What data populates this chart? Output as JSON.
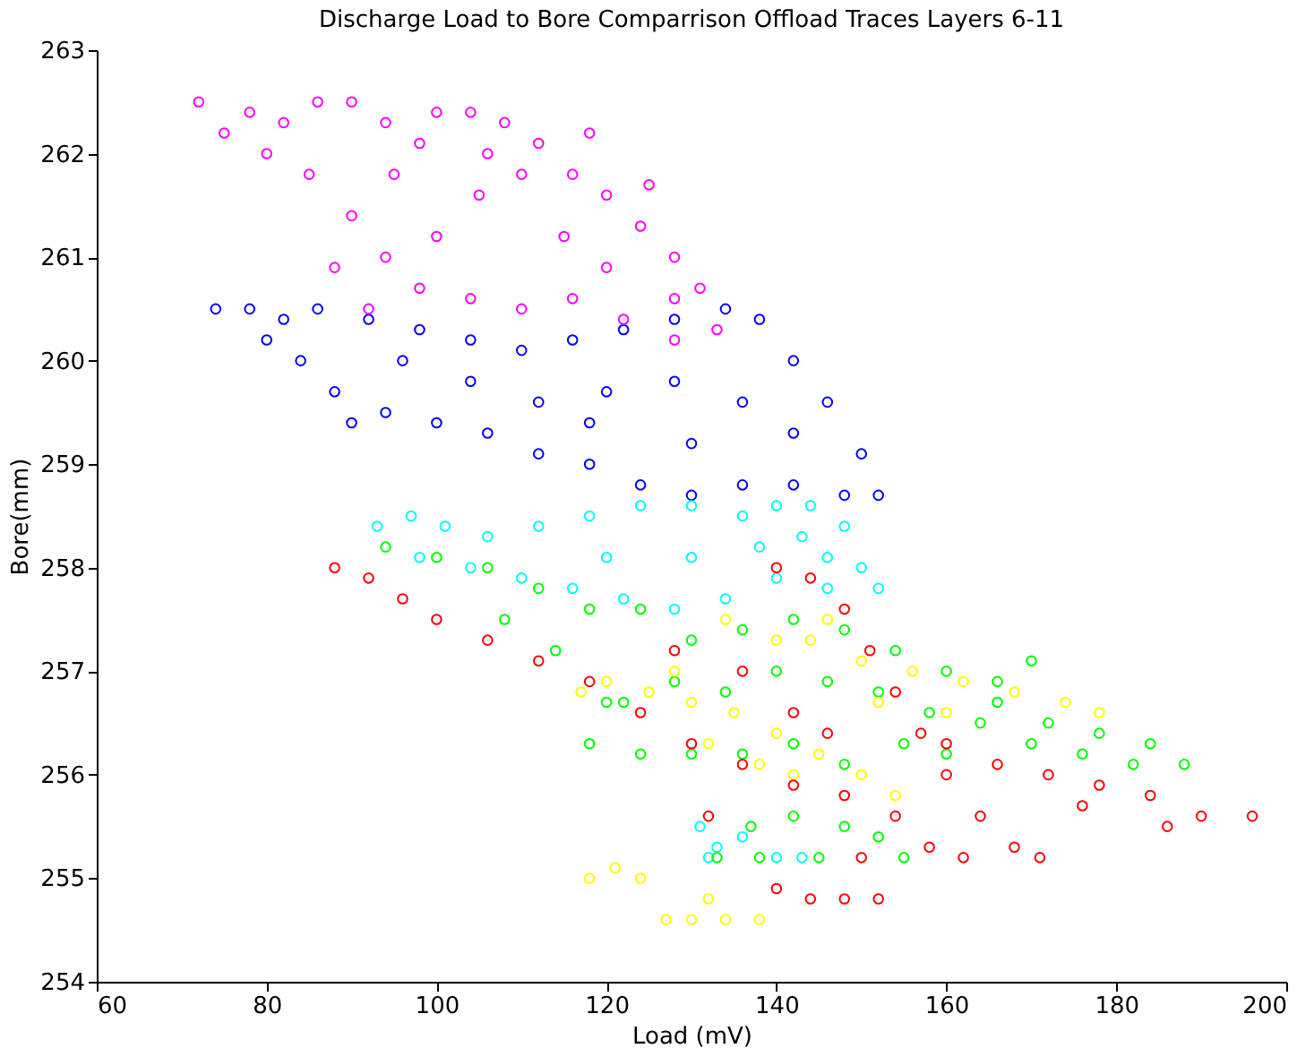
{
  "chart_data": {
    "type": "scatter",
    "title": "Discharge Load to Bore Comparrison Offload Traces Layers 6-11",
    "xlabel": "Load (mV)",
    "ylabel": "Bore(mm)",
    "xlim": [
      60,
      200
    ],
    "xticks": [
      60,
      80,
      100,
      120,
      140,
      160,
      180,
      200
    ],
    "ylim": [
      254,
      263
    ],
    "yticks": [
      254,
      255,
      256,
      257,
      258,
      259,
      260,
      261,
      262,
      263
    ],
    "grid": false,
    "legend": false,
    "marker": "circle",
    "series": [
      {
        "color": "#0000ff",
        "x": [
          74,
          78,
          82,
          86,
          92,
          98,
          104,
          110,
          116,
          122,
          128,
          134,
          138,
          142,
          146,
          150,
          152,
          148,
          142,
          136,
          130,
          124,
          118,
          112,
          106,
          100,
          94,
          90,
          88,
          84,
          80,
          96,
          104,
          112,
          120,
          128,
          136,
          142,
          130,
          118
        ],
        "values": [
          260.5,
          260.5,
          260.4,
          260.5,
          260.4,
          260.3,
          260.2,
          260.1,
          260.2,
          260.3,
          260.4,
          260.5,
          260.4,
          260.0,
          259.6,
          259.1,
          258.7,
          258.7,
          258.8,
          258.8,
          258.7,
          258.8,
          259.0,
          259.1,
          259.3,
          259.4,
          259.5,
          259.4,
          259.7,
          260.0,
          260.2,
          260.0,
          259.8,
          259.6,
          259.7,
          259.8,
          259.6,
          259.3,
          259.2,
          259.4
        ]
      },
      {
        "color": "#ff00ff",
        "x": [
          72,
          75,
          78,
          82,
          86,
          90,
          94,
          98,
          100,
          104,
          108,
          112,
          116,
          120,
          124,
          128,
          131,
          133,
          128,
          122,
          116,
          110,
          104,
          98,
          94,
          90,
          85,
          80,
          95,
          105,
          115,
          110,
          100,
          120,
          125,
          128,
          88,
          92,
          106,
          118
        ],
        "values": [
          262.5,
          262.2,
          262.4,
          262.3,
          262.5,
          262.5,
          262.3,
          262.1,
          262.4,
          262.4,
          262.3,
          262.1,
          261.8,
          261.6,
          261.3,
          261.0,
          260.7,
          260.3,
          260.2,
          260.4,
          260.6,
          260.5,
          260.6,
          260.7,
          261.0,
          261.4,
          261.8,
          262.0,
          261.8,
          261.6,
          261.2,
          261.8,
          261.2,
          260.9,
          261.7,
          260.6,
          260.9,
          260.5,
          262.0,
          262.2
        ]
      },
      {
        "color": "#00ffff",
        "x": [
          93,
          97,
          101,
          106,
          112,
          118,
          124,
          130,
          136,
          140,
          143,
          146,
          150,
          152,
          146,
          140,
          134,
          128,
          122,
          116,
          110,
          104,
          98,
          120,
          130,
          138,
          144,
          148,
          131,
          133,
          136,
          140,
          143,
          132
        ],
        "values": [
          258.4,
          258.5,
          258.4,
          258.3,
          258.4,
          258.5,
          258.6,
          258.6,
          258.5,
          258.6,
          258.3,
          258.1,
          258.0,
          257.8,
          257.8,
          257.9,
          257.7,
          257.6,
          257.7,
          257.8,
          257.9,
          258.0,
          258.1,
          258.1,
          258.1,
          258.2,
          258.6,
          258.4,
          255.5,
          255.3,
          255.4,
          255.2,
          255.2,
          255.2
        ]
      },
      {
        "color": "#00ff00",
        "x": [
          94,
          100,
          106,
          112,
          118,
          124,
          130,
          136,
          142,
          148,
          154,
          160,
          166,
          170,
          166,
          172,
          178,
          184,
          188,
          182,
          176,
          170,
          164,
          158,
          152,
          146,
          140,
          134,
          128,
          122,
          118,
          124,
          130,
          136,
          142,
          148,
          155,
          160,
          120,
          114,
          108,
          137,
          142,
          148,
          152,
          155,
          138,
          145,
          133
        ],
        "values": [
          258.2,
          258.1,
          258.0,
          257.8,
          257.6,
          257.6,
          257.3,
          257.4,
          257.5,
          257.4,
          257.2,
          257.0,
          256.9,
          257.1,
          256.7,
          256.5,
          256.4,
          256.3,
          256.1,
          256.1,
          256.2,
          256.3,
          256.5,
          256.6,
          256.8,
          256.9,
          257.0,
          256.8,
          256.9,
          256.7,
          256.3,
          256.2,
          256.2,
          256.2,
          256.3,
          256.1,
          256.3,
          256.2,
          256.7,
          257.2,
          257.5,
          255.5,
          255.6,
          255.5,
          255.4,
          255.2,
          255.2,
          255.2,
          255.2
        ]
      },
      {
        "color": "#ffff00",
        "x": [
          118,
          121,
          124,
          127,
          130,
          134,
          138,
          132,
          125,
          130,
          135,
          140,
          145,
          150,
          154,
          132,
          138,
          142,
          128,
          120,
          117,
          144,
          150,
          156,
          162,
          168,
          174,
          178,
          160,
          152,
          146,
          134,
          140
        ],
        "values": [
          255.0,
          255.1,
          255.0,
          254.6,
          254.6,
          254.6,
          254.6,
          254.8,
          256.8,
          256.7,
          256.6,
          256.4,
          256.2,
          256.0,
          255.8,
          256.3,
          256.1,
          256.0,
          257.0,
          256.9,
          256.8,
          257.3,
          257.1,
          257.0,
          256.9,
          256.8,
          256.7,
          256.6,
          256.6,
          256.7,
          257.5,
          257.5,
          257.3
        ]
      },
      {
        "color": "#ff0000",
        "x": [
          88,
          92,
          96,
          100,
          106,
          112,
          118,
          124,
          130,
          136,
          142,
          148,
          154,
          158,
          162,
          140,
          144,
          148,
          151,
          154,
          157,
          160,
          164,
          168,
          171,
          160,
          166,
          172,
          178,
          184,
          190,
          196,
          186,
          176,
          140,
          144,
          148,
          152,
          132,
          136,
          142,
          146,
          128,
          150
        ],
        "values": [
          258.0,
          257.9,
          257.7,
          257.5,
          257.3,
          257.1,
          256.9,
          256.6,
          256.3,
          256.1,
          255.9,
          255.8,
          255.6,
          255.3,
          255.2,
          258.0,
          257.9,
          257.6,
          257.2,
          256.8,
          256.4,
          256.0,
          255.6,
          255.3,
          255.2,
          256.3,
          256.1,
          256.0,
          255.9,
          255.8,
          255.6,
          255.6,
          255.5,
          255.7,
          254.9,
          254.8,
          254.8,
          254.8,
          255.6,
          257.0,
          256.6,
          256.4,
          257.2,
          255.2
        ]
      }
    ]
  }
}
